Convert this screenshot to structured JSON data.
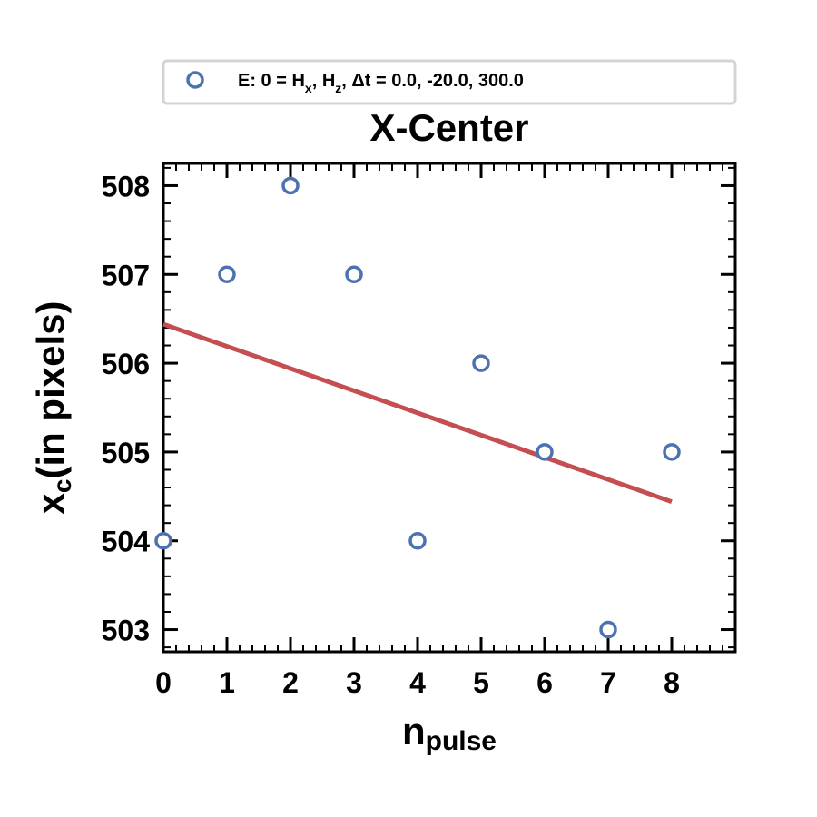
{
  "chart_data": {
    "type": "scatter",
    "title": "X-Center",
    "xlabel": {
      "main": "n",
      "sub": "pulse"
    },
    "ylabel": {
      "main": "x",
      "sub": "c",
      "rest": "(in pixels)"
    },
    "xlim": [
      0,
      9
    ],
    "ylim": [
      502.75,
      508.25
    ],
    "xticks": [
      0,
      1,
      2,
      3,
      4,
      5,
      6,
      7,
      8
    ],
    "yticks": [
      503,
      504,
      505,
      506,
      507,
      508
    ],
    "grid": false,
    "legend_position": "top-center",
    "series": [
      {
        "name": "E: 0 = Hx, Hz, Δt =  0.0, -20.0, 300.0",
        "marker": "open-circle",
        "color": "#4c72b0",
        "x": [
          0,
          1,
          2,
          3,
          4,
          5,
          6,
          7,
          8
        ],
        "y": [
          504,
          507,
          508,
          507,
          504,
          506,
          505,
          503,
          505
        ]
      }
    ],
    "fit_line": {
      "color": "#c44e52",
      "x": [
        0,
        8
      ],
      "y": [
        506.44,
        504.44
      ]
    },
    "legend": {
      "prefix": "E: 0 = H",
      "sub1": "x",
      "mid": ", H",
      "sub2": "z",
      "suffix": ", Δt =  0.0, -20.0, 300.0"
    }
  }
}
